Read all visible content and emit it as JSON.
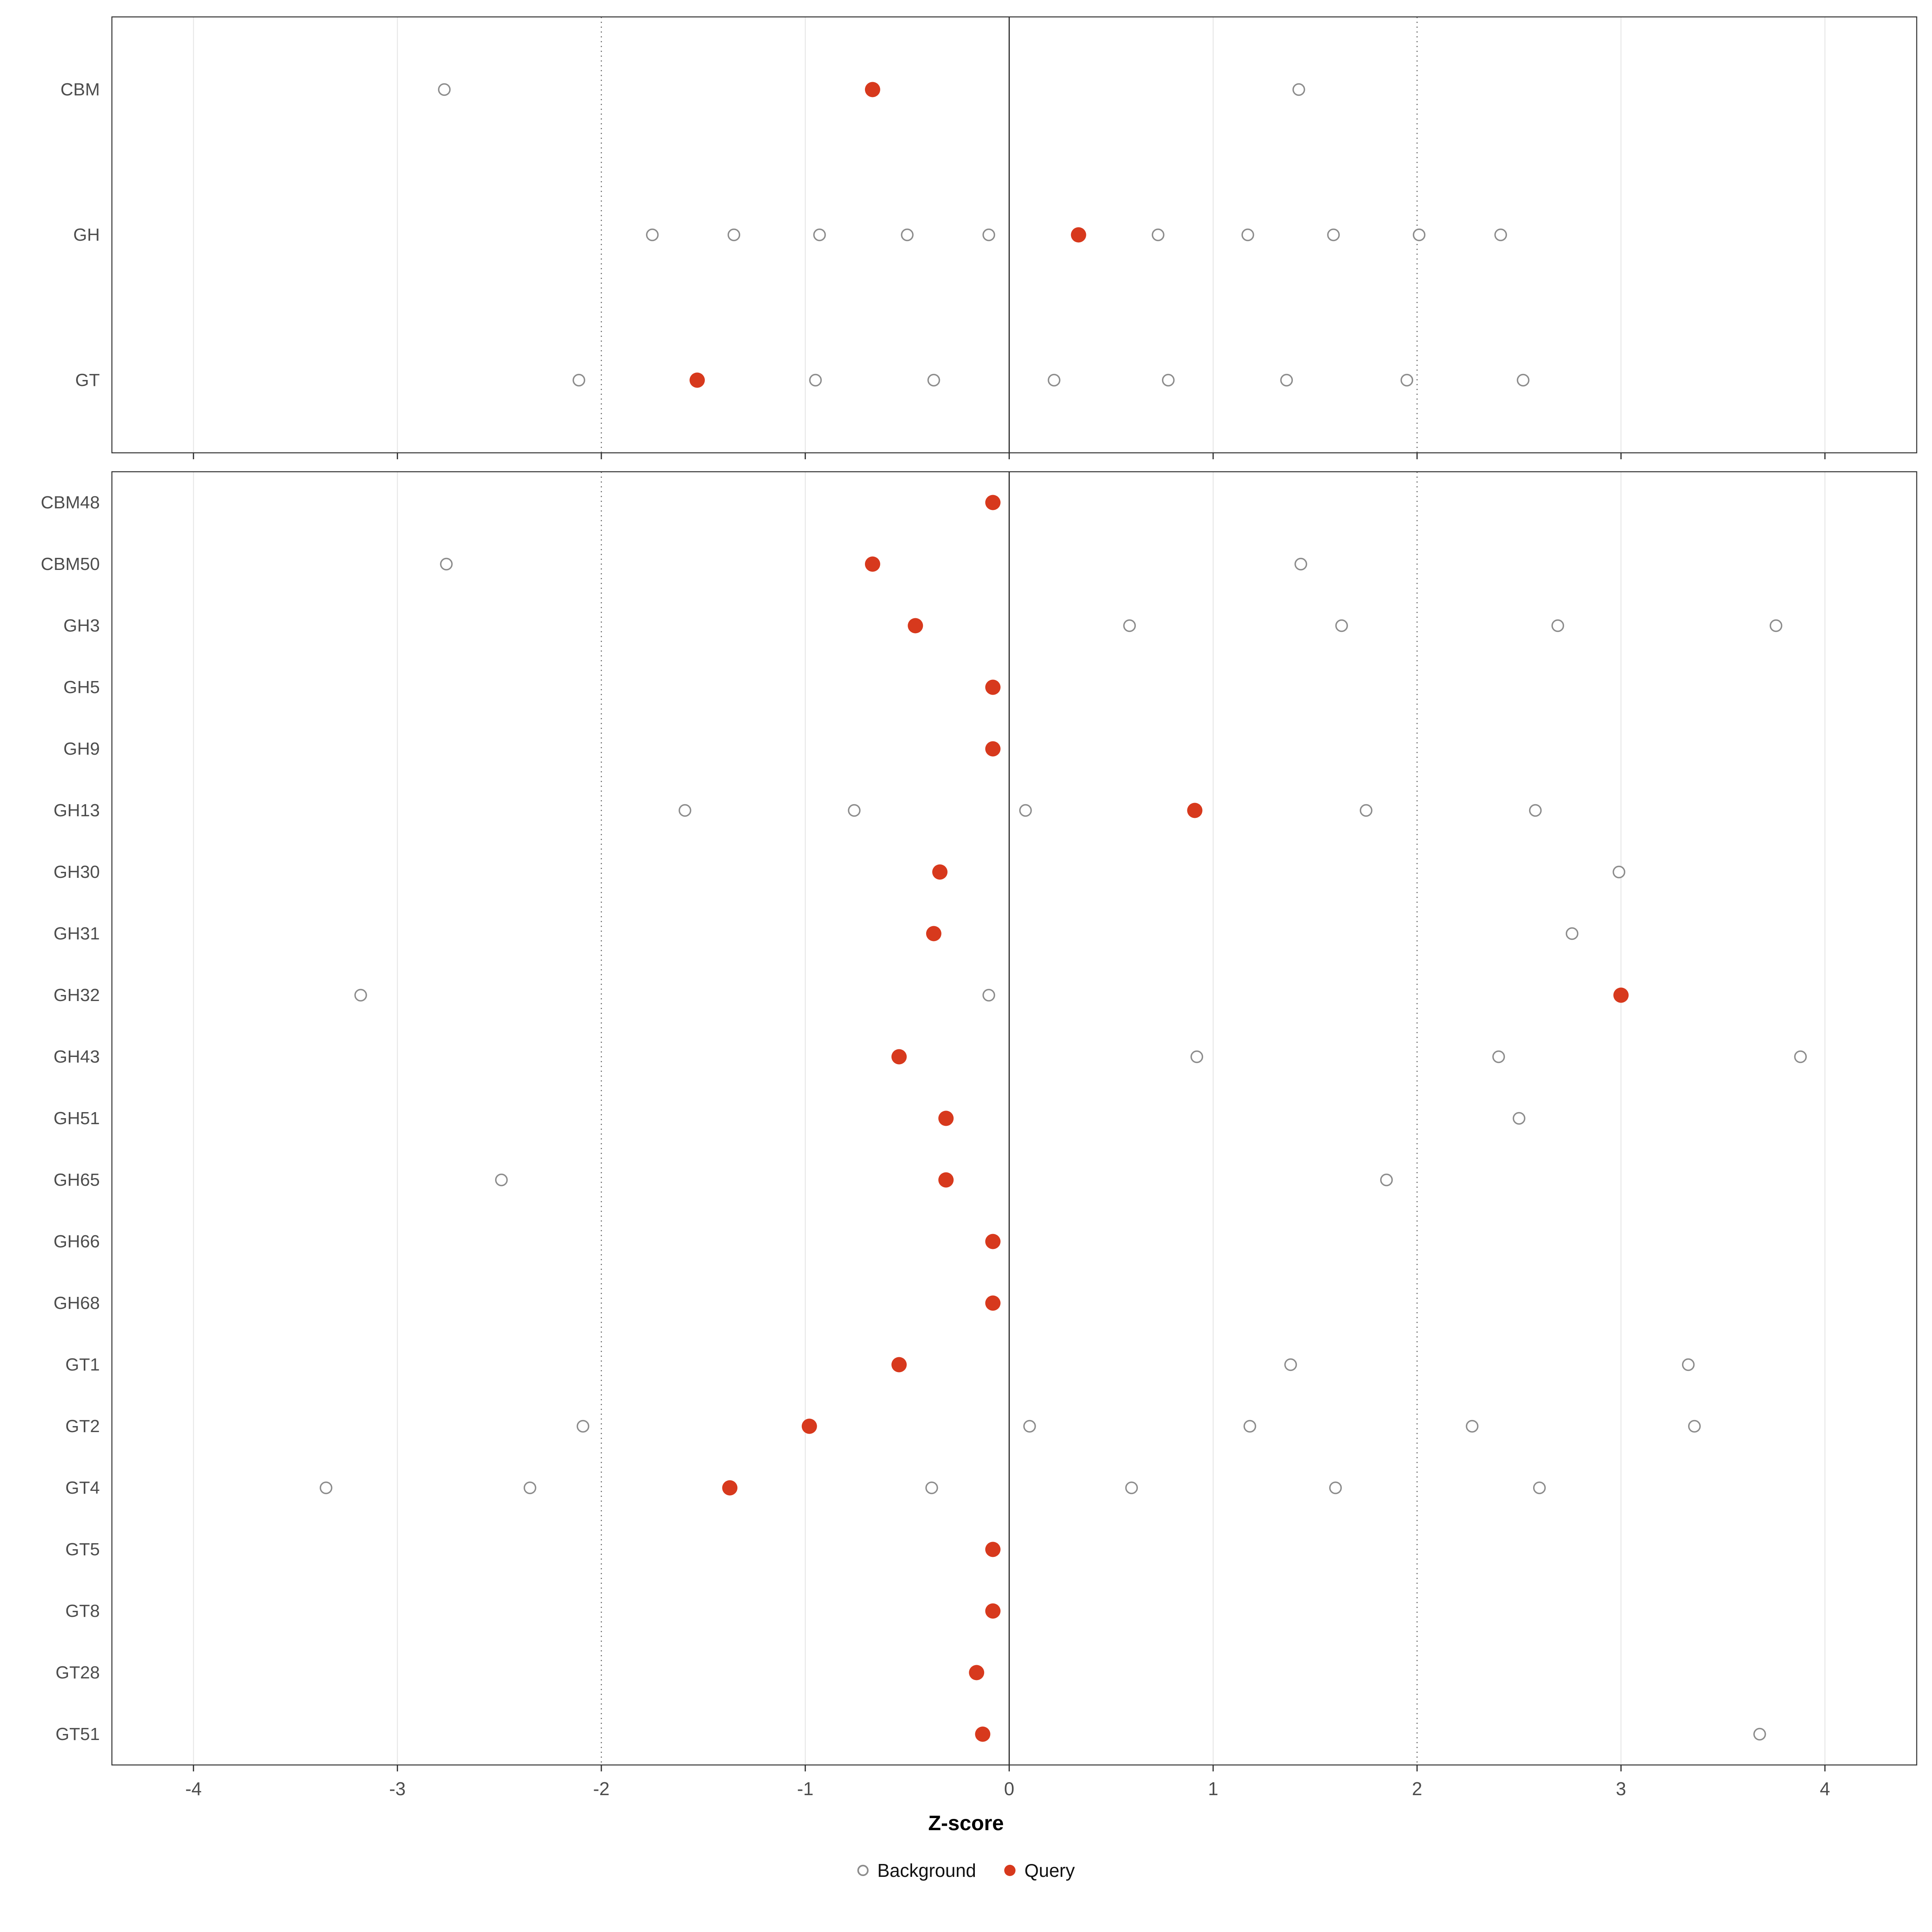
{
  "colors": {
    "query": "#D7391D",
    "background_stroke": "#8C8C8C",
    "axis_text": "#4D4D4D",
    "panel_border": "#333333",
    "grid_minor": "#E3E3E3",
    "ref_dotted": "#666666",
    "zero_line": "#333333",
    "tick_mark": "#333333"
  },
  "chart_data": {
    "type": "scatter",
    "title": "",
    "xlabel": "Z-score",
    "ylabel": "",
    "xlim": [
      -4.4,
      4.45
    ],
    "x_ticks": [
      -4,
      -3,
      -2,
      -1,
      0,
      1,
      2,
      3,
      4
    ],
    "reference_lines": {
      "solid": [
        0
      ],
      "dotted": [
        -2,
        2
      ]
    },
    "legend_background": "Background",
    "legend_query": "Query",
    "legend_position": "bottom",
    "grid": "vertical-only",
    "panels": [
      {
        "name": "family-class-panel",
        "rows": [
          {
            "label": "CBM",
            "background": [
              -2.77,
              1.42
            ],
            "query": -0.67
          },
          {
            "label": "GH",
            "background": [
              -1.75,
              -1.35,
              -0.93,
              -0.5,
              -0.1,
              0.73,
              1.17,
              1.59,
              2.01,
              2.41
            ],
            "query": 0.34
          },
          {
            "label": "GT",
            "background": [
              -2.11,
              -0.95,
              -0.37,
              0.22,
              0.78,
              1.36,
              1.95,
              2.52
            ],
            "query": -1.53
          }
        ]
      },
      {
        "name": "family-panel",
        "rows": [
          {
            "label": "CBM48",
            "background": [],
            "query": -0.08
          },
          {
            "label": "CBM50",
            "background": [
              -2.76,
              1.43
            ],
            "query": -0.67
          },
          {
            "label": "GH3",
            "background": [
              0.59,
              1.63,
              2.69,
              3.76
            ],
            "query": -0.46
          },
          {
            "label": "GH5",
            "background": [],
            "query": -0.08
          },
          {
            "label": "GH9",
            "background": [],
            "query": -0.08
          },
          {
            "label": "GH13",
            "background": [
              -1.59,
              -0.76,
              0.08,
              1.75,
              2.58
            ],
            "query": 0.91
          },
          {
            "label": "GH30",
            "background": [
              2.99
            ],
            "query": -0.34
          },
          {
            "label": "GH31",
            "background": [
              2.76
            ],
            "query": -0.37
          },
          {
            "label": "GH32",
            "background": [
              -3.18,
              -0.1
            ],
            "query": 3.0
          },
          {
            "label": "GH43",
            "background": [
              0.92,
              2.4,
              3.88
            ],
            "query": -0.54
          },
          {
            "label": "GH51",
            "background": [
              2.5
            ],
            "query": -0.31
          },
          {
            "label": "GH65",
            "background": [
              -2.49,
              1.85
            ],
            "query": -0.31
          },
          {
            "label": "GH66",
            "background": [],
            "query": -0.08
          },
          {
            "label": "GH68",
            "background": [],
            "query": -0.08
          },
          {
            "label": "GT1",
            "background": [
              1.38,
              3.33
            ],
            "query": -0.54
          },
          {
            "label": "GT2",
            "background": [
              -2.09,
              0.1,
              1.18,
              2.27,
              3.36
            ],
            "query": -0.98
          },
          {
            "label": "GT4",
            "background": [
              -3.35,
              -2.35,
              -0.38,
              0.6,
              1.6,
              2.6
            ],
            "query": -1.37
          },
          {
            "label": "GT5",
            "background": [],
            "query": -0.08
          },
          {
            "label": "GT8",
            "background": [],
            "query": -0.08
          },
          {
            "label": "GT28",
            "background": [],
            "query": -0.16
          },
          {
            "label": "GT51",
            "background": [
              3.68
            ],
            "query": -0.13
          }
        ]
      }
    ]
  }
}
